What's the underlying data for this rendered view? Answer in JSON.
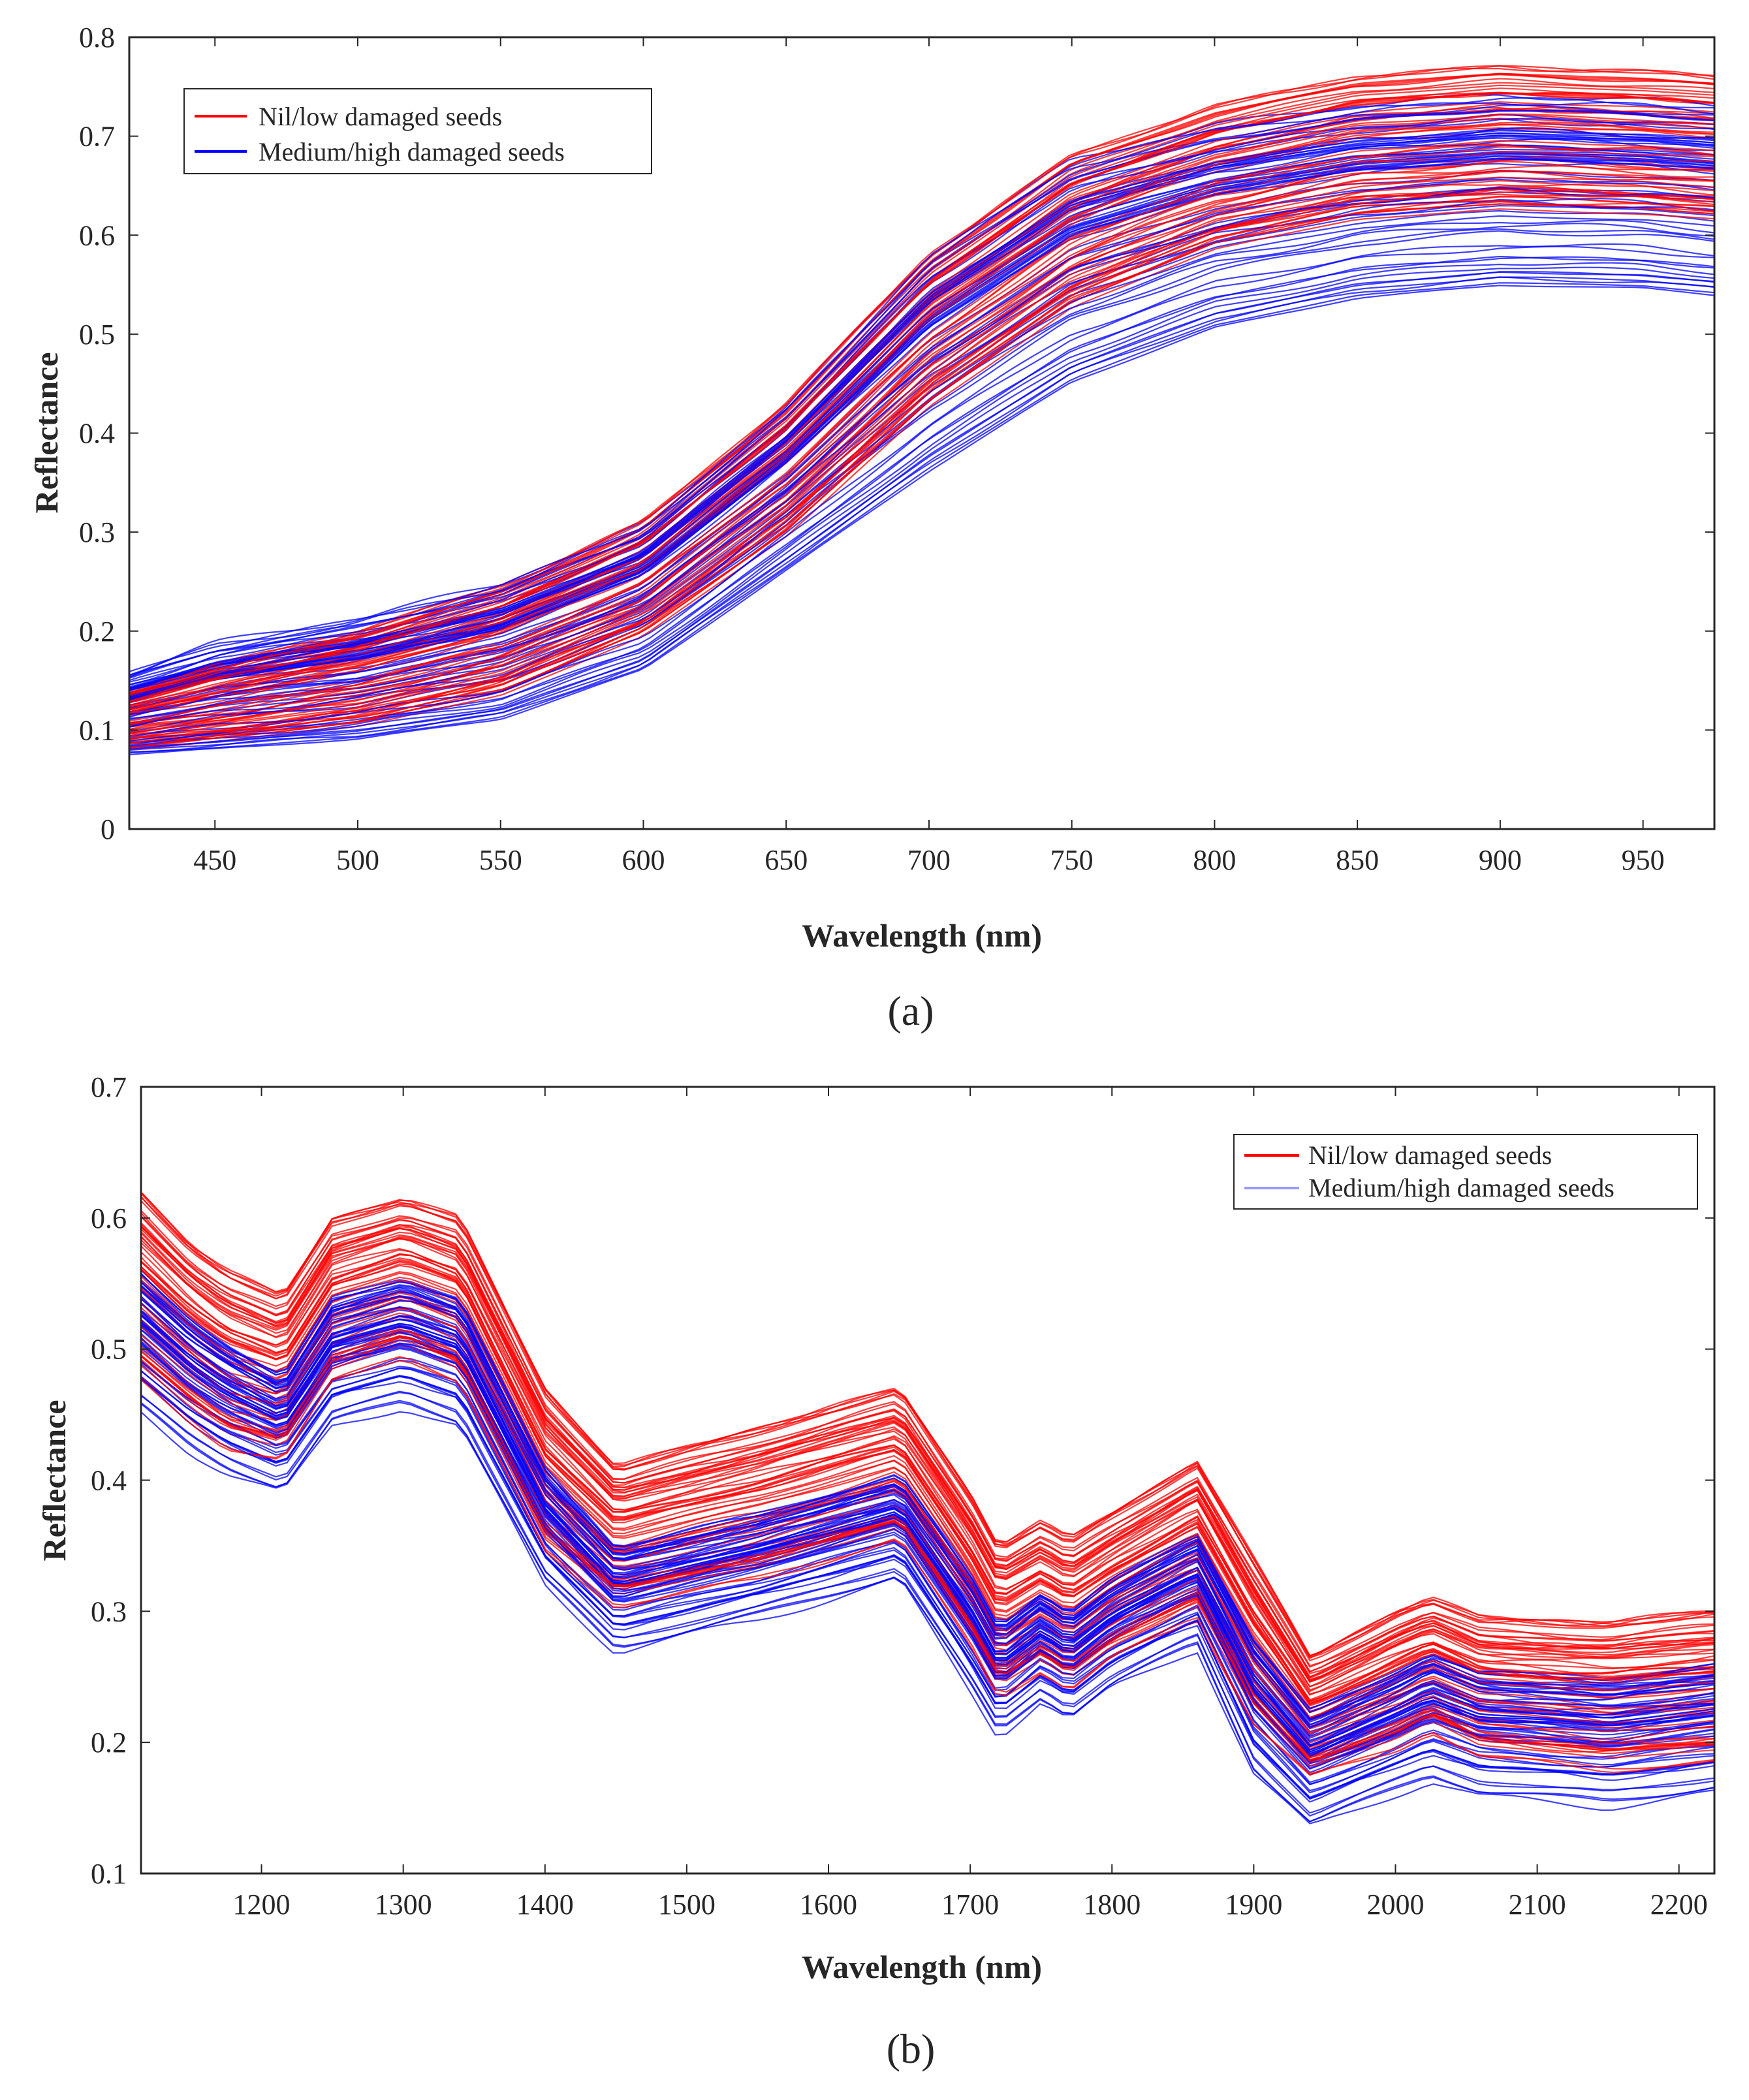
{
  "chart_data": [
    {
      "id": "a",
      "type": "line",
      "caption": "(a)",
      "xlabel": "Wavelength (nm)",
      "ylabel": "Reflectance",
      "xlim": [
        420,
        975
      ],
      "ylim": [
        0,
        0.8
      ],
      "xticks": [
        450,
        500,
        550,
        600,
        650,
        700,
        750,
        800,
        850,
        900,
        950
      ],
      "yticks": [
        0,
        0.1,
        0.2,
        0.3,
        0.4,
        0.5,
        0.6,
        0.7,
        0.8
      ],
      "grid": false,
      "legend": {
        "position": "top-left",
        "entries": [
          {
            "label": "Nil/low damaged seeds",
            "color": "#ff0000"
          },
          {
            "label": "Medium/high damaged seeds",
            "color": "#0000ff"
          }
        ]
      },
      "series": [
        {
          "name": "Nil/low damaged seeds",
          "color": "#ff0000",
          "count": 60,
          "x": [
            420,
            450,
            500,
            550,
            600,
            650,
            700,
            750,
            800,
            850,
            900,
            950,
            975
          ],
          "envelope_low": [
            0.078,
            0.085,
            0.1,
            0.13,
            0.19,
            0.29,
            0.42,
            0.52,
            0.58,
            0.61,
            0.62,
            0.615,
            0.61
          ],
          "envelope_high": [
            0.14,
            0.165,
            0.2,
            0.245,
            0.31,
            0.43,
            0.58,
            0.68,
            0.73,
            0.76,
            0.77,
            0.765,
            0.76
          ]
        },
        {
          "name": "Medium/high damaged seeds",
          "color": "#0000ff",
          "count": 60,
          "x": [
            420,
            450,
            500,
            550,
            600,
            650,
            700,
            750,
            800,
            850,
            900,
            950,
            975
          ],
          "envelope_low": [
            0.075,
            0.08,
            0.09,
            0.11,
            0.16,
            0.26,
            0.36,
            0.45,
            0.505,
            0.535,
            0.548,
            0.545,
            0.538
          ],
          "envelope_high": [
            0.16,
            0.19,
            0.215,
            0.25,
            0.31,
            0.43,
            0.585,
            0.68,
            0.715,
            0.735,
            0.745,
            0.74,
            0.735
          ]
        }
      ]
    },
    {
      "id": "b",
      "type": "line",
      "caption": "(b)",
      "xlabel": "Wavelength (nm)",
      "ylabel": "Reflectance",
      "xlim": [
        1115,
        2225
      ],
      "ylim": [
        0.1,
        0.7
      ],
      "xticks": [
        1200,
        1300,
        1400,
        1500,
        1600,
        1700,
        1800,
        1900,
        2000,
        2100,
        2200
      ],
      "yticks": [
        0.1,
        0.2,
        0.3,
        0.4,
        0.5,
        0.6,
        0.7
      ],
      "grid": false,
      "legend": {
        "position": "top-right",
        "entries": [
          {
            "label": "Nil/low damaged seeds",
            "color": "#ff0000"
          },
          {
            "label": "Medium/high damaged seeds",
            "color": "#0000ff"
          }
        ]
      },
      "series": [
        {
          "name": "Nil/low damaged seeds",
          "color": "#ff0000",
          "count": 60,
          "x": [
            1115,
            1150,
            1175,
            1215,
            1250,
            1300,
            1340,
            1400,
            1450,
            1550,
            1650,
            1700,
            1720,
            1750,
            1770,
            1800,
            1860,
            1900,
            1940,
            2000,
            2025,
            2060,
            2150,
            2225
          ],
          "envelope_low": [
            0.47,
            0.44,
            0.42,
            0.41,
            0.47,
            0.49,
            0.47,
            0.34,
            0.3,
            0.32,
            0.35,
            0.27,
            0.23,
            0.25,
            0.235,
            0.26,
            0.29,
            0.21,
            0.17,
            0.19,
            0.205,
            0.185,
            0.175,
            0.18
          ],
          "envelope_high": [
            0.62,
            0.58,
            0.56,
            0.54,
            0.6,
            0.615,
            0.6,
            0.47,
            0.41,
            0.44,
            0.47,
            0.39,
            0.35,
            0.368,
            0.355,
            0.375,
            0.415,
            0.34,
            0.265,
            0.3,
            0.31,
            0.295,
            0.292,
            0.3
          ]
        },
        {
          "name": "Medium/high damaged seeds",
          "color": "#0000ff",
          "count": 60,
          "x": [
            1115,
            1150,
            1175,
            1215,
            1250,
            1300,
            1340,
            1400,
            1450,
            1550,
            1650,
            1700,
            1720,
            1750,
            1770,
            1800,
            1860,
            1900,
            1940,
            2000,
            2025,
            2060,
            2150,
            2225
          ],
          "envelope_low": [
            0.44,
            0.41,
            0.395,
            0.38,
            0.43,
            0.445,
            0.43,
            0.31,
            0.26,
            0.285,
            0.315,
            0.23,
            0.195,
            0.222,
            0.208,
            0.232,
            0.262,
            0.165,
            0.125,
            0.15,
            0.16,
            0.148,
            0.14,
            0.15
          ],
          "envelope_high": [
            0.56,
            0.525,
            0.505,
            0.48,
            0.54,
            0.555,
            0.54,
            0.41,
            0.35,
            0.375,
            0.405,
            0.33,
            0.29,
            0.315,
            0.3,
            0.325,
            0.36,
            0.28,
            0.225,
            0.255,
            0.27,
            0.255,
            0.25,
            0.26
          ]
        }
      ]
    }
  ]
}
